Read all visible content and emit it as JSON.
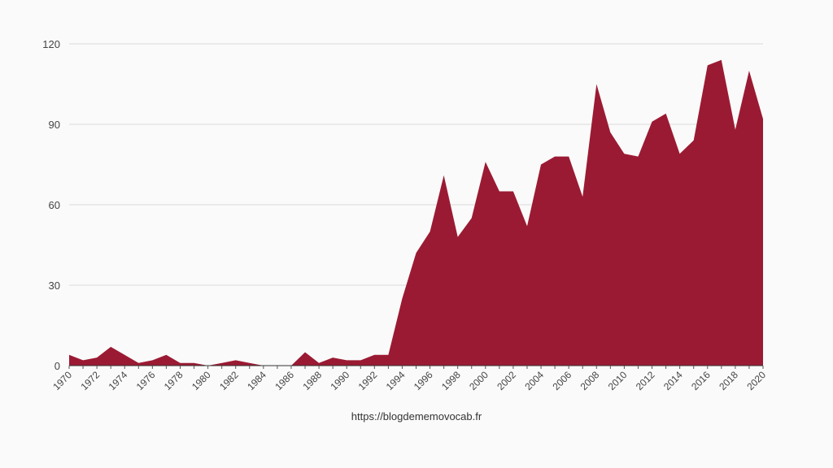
{
  "chart_data": {
    "type": "area",
    "title": "",
    "xlabel": "",
    "ylabel": "",
    "x": [
      1970,
      1971,
      1972,
      1973,
      1974,
      1975,
      1976,
      1977,
      1978,
      1979,
      1980,
      1981,
      1982,
      1983,
      1984,
      1985,
      1986,
      1987,
      1988,
      1989,
      1990,
      1991,
      1992,
      1993,
      1994,
      1995,
      1996,
      1997,
      1998,
      1999,
      2000,
      2001,
      2002,
      2003,
      2004,
      2005,
      2006,
      2007,
      2008,
      2009,
      2010,
      2011,
      2012,
      2013,
      2014,
      2015,
      2016,
      2017,
      2018,
      2019,
      2020
    ],
    "values": [
      4,
      2,
      3,
      7,
      4,
      1,
      2,
      4,
      1,
      1,
      0,
      1,
      2,
      1,
      0,
      0,
      0,
      5,
      1,
      3,
      2,
      2,
      4,
      4,
      25,
      42,
      50,
      71,
      48,
      55,
      76,
      65,
      65,
      52,
      75,
      78,
      78,
      63,
      105,
      87,
      79,
      78,
      91,
      94,
      79,
      84,
      112,
      114,
      88,
      110,
      92
    ],
    "xlim": [
      1970,
      2020
    ],
    "ylim": [
      0,
      120
    ],
    "y_ticks": [
      "0",
      "30",
      "60",
      "90",
      "120"
    ],
    "x_ticks": [
      "1970",
      "1972",
      "1974",
      "1976",
      "1978",
      "1980",
      "1982",
      "1984",
      "1986",
      "1988",
      "1990",
      "1992",
      "1994",
      "1996",
      "1998",
      "2000",
      "2002",
      "2004",
      "2006",
      "2008",
      "2010",
      "2012",
      "2014",
      "2016",
      "2018",
      "2020"
    ],
    "grid": true,
    "legend": "none",
    "fill_color": "#9b1a33"
  },
  "footer": "https://blogdememovocab.fr"
}
